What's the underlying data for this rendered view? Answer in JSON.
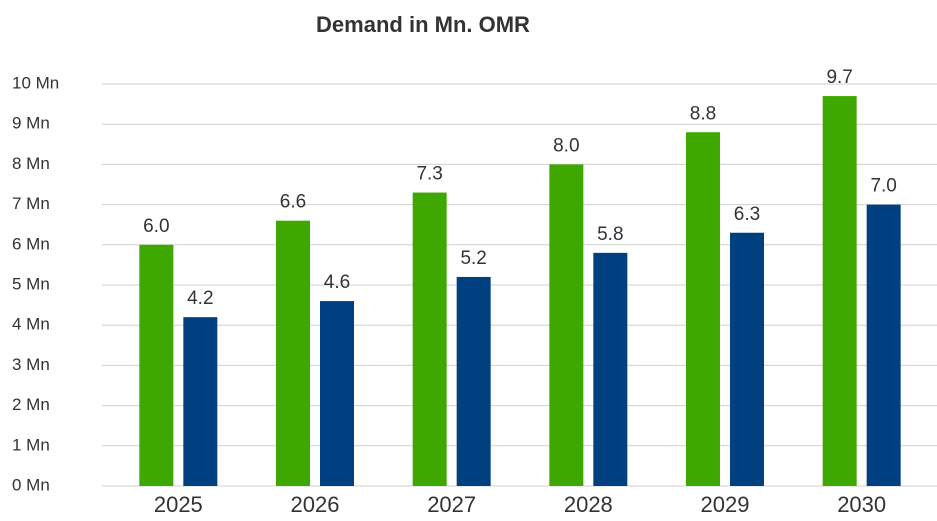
{
  "chart_data": {
    "type": "bar",
    "title": "Demand in Mn. OMR",
    "categories": [
      "2025",
      "2026",
      "2027",
      "2028",
      "2029",
      "2030"
    ],
    "series": [
      {
        "color": "#3fa800",
        "values": [
          6.0,
          6.6,
          7.3,
          8.0,
          8.8,
          9.7
        ],
        "value_labels": [
          "6.0",
          "6.6",
          "7.3",
          "8.0",
          "8.8",
          "9.7"
        ]
      },
      {
        "color": "#004080",
        "values": [
          4.2,
          4.6,
          5.2,
          5.8,
          6.3,
          7.0
        ],
        "value_labels": [
          "4.2",
          "4.6",
          "5.2",
          "5.8",
          "6.3",
          "7.0"
        ]
      }
    ],
    "ylim": [
      0,
      10
    ],
    "yticks": [
      {
        "value": 0,
        "label": "0 Mn"
      },
      {
        "value": 1,
        "label": "1 Mn"
      },
      {
        "value": 2,
        "label": "2 Mn"
      },
      {
        "value": 3,
        "label": "3 Mn"
      },
      {
        "value": 4,
        "label": "4 Mn"
      },
      {
        "value": 5,
        "label": "5 Mn"
      },
      {
        "value": 6,
        "label": "6 Mn"
      },
      {
        "value": 7,
        "label": "7 Mn"
      },
      {
        "value": 8,
        "label": "8 Mn"
      },
      {
        "value": 9,
        "label": "9 Mn"
      },
      {
        "value": 10,
        "label": "10 Mn"
      }
    ],
    "grid": true
  }
}
